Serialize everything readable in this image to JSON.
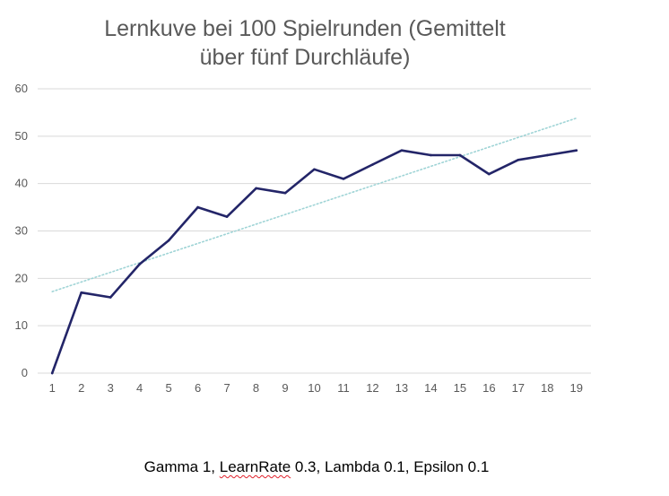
{
  "chart_data": {
    "type": "line",
    "title_lines": [
      "Lernkuve bei 100 Spielrunden (Gemittelt",
      "über fünf Durchläufe)"
    ],
    "x": [
      1,
      2,
      3,
      4,
      5,
      6,
      7,
      8,
      9,
      10,
      11,
      12,
      13,
      14,
      15,
      16,
      17,
      18,
      19
    ],
    "x_tick_labels": [
      "1",
      "2",
      "3",
      "4",
      "5",
      "6",
      "7",
      "8",
      "9",
      "10",
      "11",
      "12",
      "13",
      "14",
      "15",
      "16",
      "17",
      "18",
      "19"
    ],
    "y_ticks": [
      0,
      10,
      20,
      30,
      40,
      50,
      60
    ],
    "ylim": [
      0,
      60
    ],
    "series": [
      {
        "values": [
          0,
          17,
          16,
          23,
          28,
          35,
          33,
          39,
          38,
          43,
          41,
          44,
          47,
          46,
          46,
          42,
          45,
          46,
          47
        ]
      }
    ],
    "trendline": {
      "type": "linear",
      "start": [
        1,
        17.2
      ],
      "end": [
        19,
        53.8
      ]
    },
    "grid": {
      "horizontal": true,
      "vertical": false
    },
    "legend": "none",
    "colors": {
      "series": "#232568",
      "trendline": "#9fd4d6",
      "grid": "#d9d9d9",
      "title": "#595959",
      "ticks": "#595959"
    }
  },
  "caption": {
    "prefix": "Gamma 1, ",
    "learnrate_word": "LearnRate",
    "suffix": " 0.3, Lambda 0.1, Epsilon 0.1"
  }
}
